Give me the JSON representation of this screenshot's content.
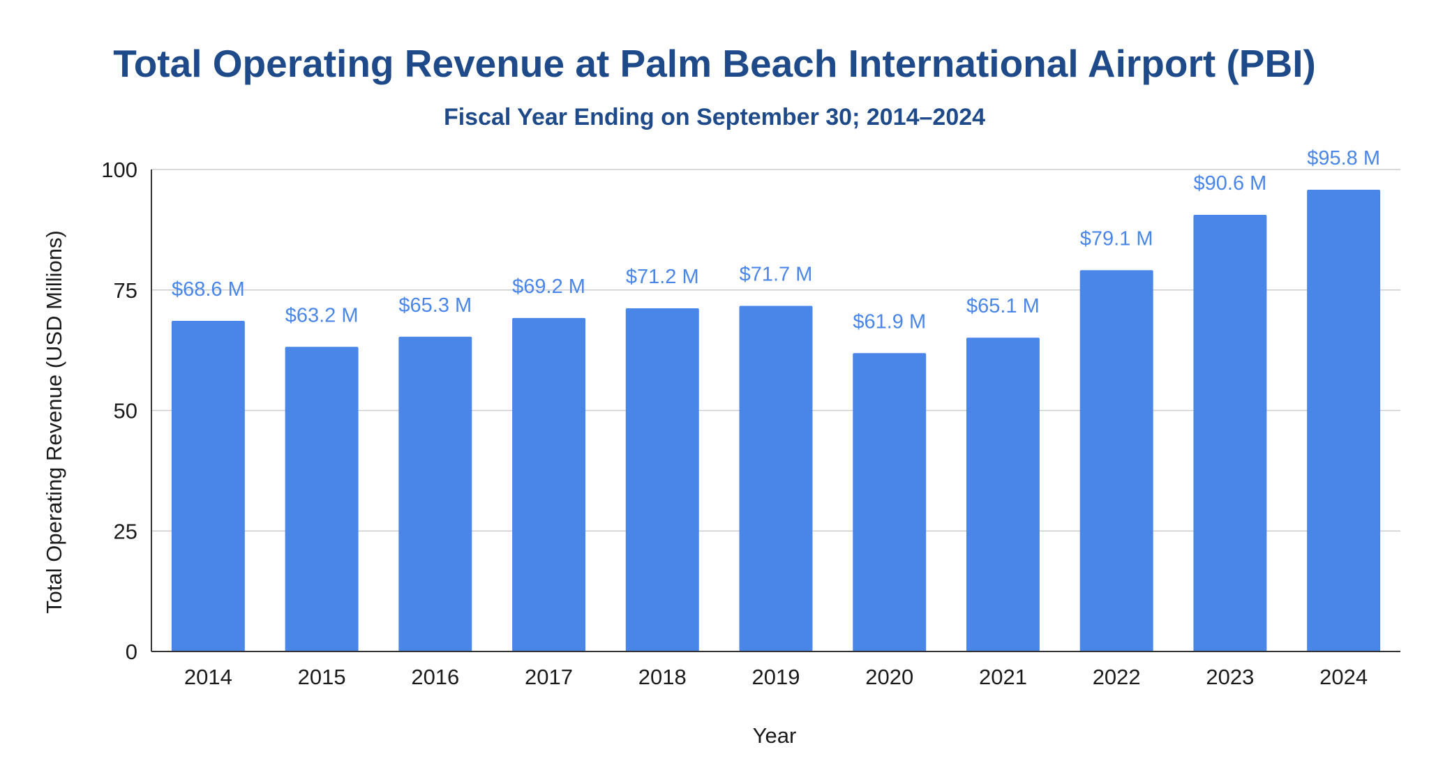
{
  "chart_data": {
    "type": "bar",
    "title": "Total Operating Revenue at Palm Beach International Airport (PBI)",
    "subtitle": "Fiscal Year Ending on September 30; 2014–2024",
    "xlabel": "Year",
    "ylabel": "Total Operating Revenue (USD Millions)",
    "categories": [
      "2014",
      "2015",
      "2016",
      "2017",
      "2018",
      "2019",
      "2020",
      "2021",
      "2022",
      "2023",
      "2024"
    ],
    "values": [
      68.6,
      63.2,
      65.3,
      69.2,
      71.2,
      71.7,
      61.9,
      65.1,
      79.1,
      90.6,
      95.8
    ],
    "data_labels": [
      "$68.6 M",
      "$63.2 M",
      "$65.3 M",
      "$69.2 M",
      "$71.2 M",
      "$71.7 M",
      "$61.9 M",
      "$65.1 M",
      "$79.1 M",
      "$90.6 M",
      "$95.8 M"
    ],
    "ylim": [
      0,
      100
    ],
    "yticks": [
      0,
      25,
      50,
      75,
      100
    ],
    "grid": true,
    "legend": "none",
    "bar_color": "#4a86e8",
    "label_color": "#4a86e8",
    "title_color": "#1f4a8a"
  }
}
